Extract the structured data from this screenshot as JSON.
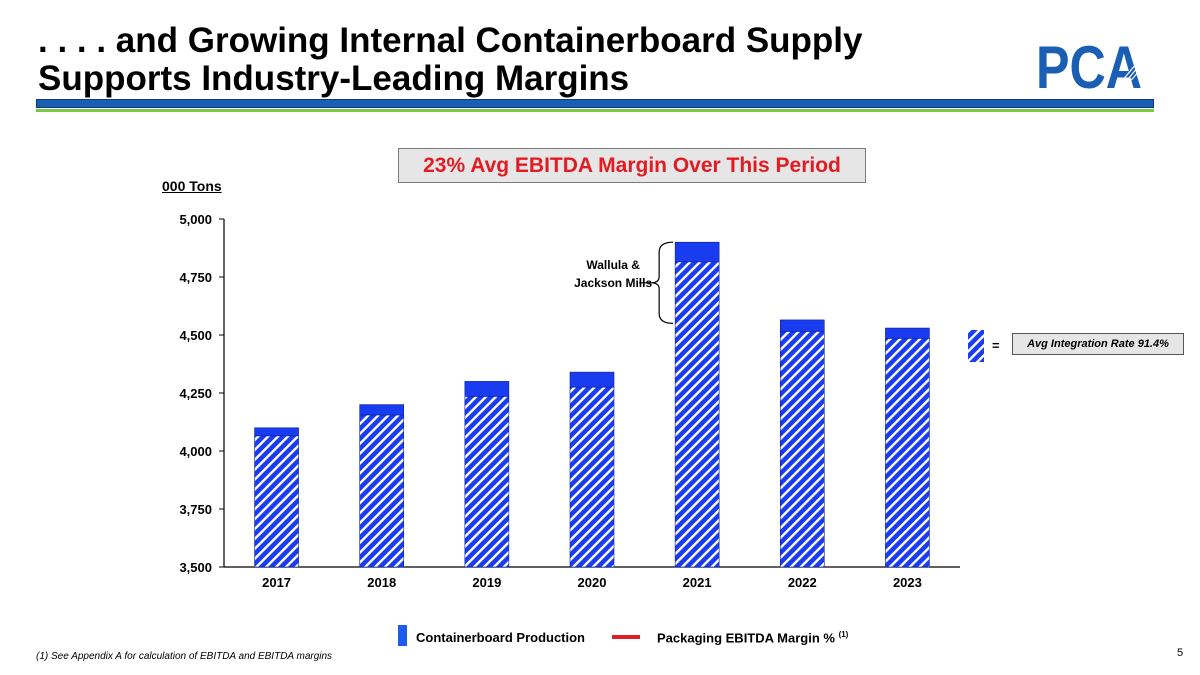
{
  "title": {
    "line1": ". . . . and Growing Internal Containerboard Supply",
    "line2": "Supports Industry-Leading Margins"
  },
  "logo": {
    "text": "PCA",
    "color": "#1a5fb4"
  },
  "callout": "23% Avg EBITDA Margin Over This Period",
  "integration_legend": {
    "equals": "=",
    "label": "Avg Integration Rate 91.4%"
  },
  "legend": {
    "production": "Containerboard Production",
    "margin": "Packaging EBITDA Margin %",
    "margin_note": "(1)"
  },
  "footnote": "(1)  See Appendix A for calculation of EBITDA and EBITDA margins",
  "page_number": "5",
  "colors": {
    "bar": "#1a3cf0",
    "hatch_bg": "#ffffff",
    "accent_red": "#e31b23",
    "green": "#7ac943"
  },
  "chart_data": {
    "type": "bar",
    "title": "",
    "ylabel": "000 Tons",
    "xlabel": "",
    "ylim": [
      3500,
      5000
    ],
    "yticks": [
      3500,
      3750,
      4000,
      4250,
      4500,
      4750,
      5000
    ],
    "ytick_labels": [
      "3,500",
      "3,750",
      "4,000",
      "4,250",
      "4,500",
      "4,750",
      "5,000"
    ],
    "categories": [
      "2017",
      "2018",
      "2019",
      "2020",
      "2021",
      "2022",
      "2023"
    ],
    "series": [
      {
        "name": "Integrated (hatched)",
        "values": [
          4065,
          4155,
          4235,
          4275,
          4815,
          4515,
          4485
        ]
      },
      {
        "name": "Containerboard Production",
        "values": [
          4100,
          4200,
          4300,
          4340,
          4900,
          4565,
          4530
        ]
      }
    ],
    "annotation": {
      "text_line1": "Wallula &",
      "text_line2": "Jackson Mills",
      "category": "2021",
      "from": 4550,
      "to": 4900
    }
  }
}
